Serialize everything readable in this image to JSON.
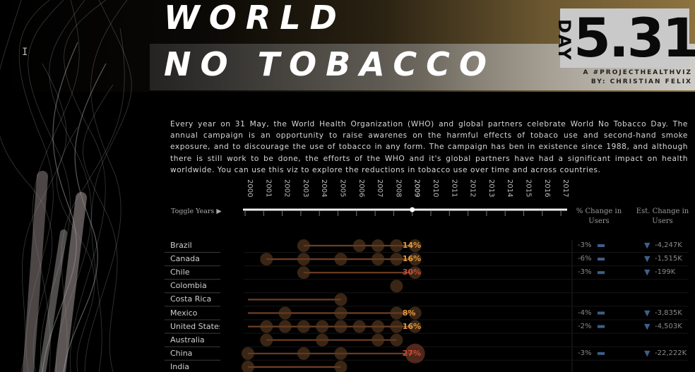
{
  "header": {
    "title_line1": "WORLD",
    "title_line2": "NO TOBACCO",
    "day_label": "DAY",
    "date": "5.31",
    "tagline": "A #PROJECTHEALTHVIZ",
    "byline": "BY: CHRISTIAN FELIX"
  },
  "description": "Every year on 31 May, the World Health Organization (WHO) and global partners celebrate World No Tobacco Day. The annual campaign is an opportunity to raise awarenes on the harmful effects of tobaco use and second-hand smoke exposure, and to discourage the use of tobacco in any form. The campaign has ben in existence since 1988, and although there is still work to be done, the efforts of the WHO and it's global partners have had a significant impact on health worldwide. You can use this viz to explore the reductions in tobacco use over time and across countries.",
  "controls": {
    "toggle_label": "Toggle Years ▶",
    "years": [
      "2000",
      "2001",
      "2002",
      "2003",
      "2004",
      "2005",
      "2006",
      "2007",
      "2008",
      "2009",
      "2010",
      "2011",
      "2012",
      "2013",
      "2014",
      "2015",
      "2016",
      "2017"
    ],
    "selected_year": "2009"
  },
  "columns": {
    "pct_change_line1": "% Change in",
    "pct_change_line2": "Users",
    "est_change_line1": "Est. Change in",
    "est_change_line2": "Users"
  },
  "colors": {
    "accent": "#e39a3c",
    "dot": "#5a3a22",
    "line": "#a05a30",
    "pct_red": "#c94e35",
    "down_arrow": "#3d5f8a"
  },
  "chart_data": {
    "type": "scatter",
    "title": "",
    "x_categories": [
      "2000",
      "2001",
      "2002",
      "2003",
      "2004",
      "2005",
      "2006",
      "2007",
      "2008",
      "2009",
      "2010",
      "2011",
      "2012",
      "2013",
      "2014",
      "2015",
      "2016",
      "2017"
    ],
    "rows": [
      {
        "country": "Brazil",
        "years": [
          "2003",
          "2006",
          "2007",
          "2008",
          "2009"
        ],
        "start": "2003",
        "end": "2009",
        "label": "14%",
        "label_color": "#e39a3c",
        "pct_change": "-3%",
        "est_change": "-4,247K"
      },
      {
        "country": "Canada",
        "years": [
          "2001",
          "2003",
          "2005",
          "2007",
          "2008",
          "2009"
        ],
        "start": "2001",
        "end": "2009",
        "label": "16%",
        "label_color": "#e39a3c",
        "pct_change": "-6%",
        "est_change": "-1,515K"
      },
      {
        "country": "Chile",
        "years": [
          "2003",
          "2009"
        ],
        "start": "2003",
        "end": "2009",
        "label": "30%",
        "label_color": "#c94e35",
        "pct_change": "-3%",
        "est_change": "-199K"
      },
      {
        "country": "Colombia",
        "years": [
          "2008"
        ],
        "start": "2008",
        "end": "2008",
        "label": "",
        "label_color": "#e39a3c",
        "pct_change": "",
        "est_change": ""
      },
      {
        "country": "Costa Rica",
        "years": [
          "2005"
        ],
        "start": "2000",
        "end": "2005",
        "label": "",
        "label_color": "#e39a3c",
        "pct_change": "",
        "est_change": ""
      },
      {
        "country": "Mexico",
        "years": [
          "2002",
          "2005",
          "2008",
          "2009"
        ],
        "start": "2000",
        "end": "2009",
        "label": "8%",
        "label_color": "#e39a3c",
        "pct_change": "-4%",
        "est_change": "-3,835K"
      },
      {
        "country": "United States",
        "years": [
          "2001",
          "2002",
          "2003",
          "2004",
          "2005",
          "2006",
          "2007",
          "2008",
          "2009"
        ],
        "start": "2000",
        "end": "2009",
        "label": "16%",
        "label_color": "#e39a3c",
        "pct_change": "-2%",
        "est_change": "-4,503K"
      },
      {
        "country": "Australia",
        "years": [
          "2001",
          "2004",
          "2007",
          "2008"
        ],
        "start": "2001",
        "end": "2008",
        "label": "",
        "label_color": "#e39a3c",
        "pct_change": "",
        "est_change": ""
      },
      {
        "country": "China",
        "years": [
          "2000",
          "2003",
          "2005",
          "2009"
        ],
        "start": "2000",
        "end": "2009",
        "label": "27%",
        "label_color": "#c94e35",
        "pct_change": "-3%",
        "est_change": "-22,222K"
      },
      {
        "country": "India",
        "years": [
          "2000",
          "2005"
        ],
        "start": "2000",
        "end": "2005",
        "label": "",
        "label_color": "#e39a3c",
        "pct_change": "",
        "est_change": ""
      }
    ]
  }
}
